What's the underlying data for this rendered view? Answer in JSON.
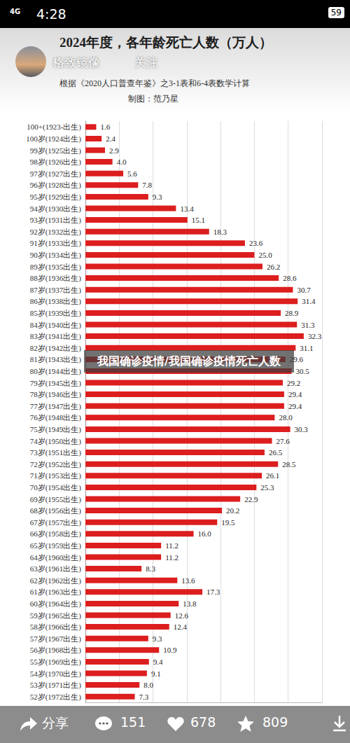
{
  "screen": {
    "network": "4G",
    "status_time": "4:28",
    "battery": "59",
    "account": "格致镜像",
    "follow": "关注",
    "caption": "我国确诊疫情/我国确诊疫情死亡人数",
    "share": "分享",
    "comments": 151,
    "likes": 678,
    "favorites": 809
  },
  "chart_data": {
    "type": "bar",
    "orientation": "horizontal",
    "title": "2024年度，各年龄死亡人数（万人）",
    "subtitle": "根据《2020人口普查年鉴》之3-1表和6-4表数学计算",
    "annotations": [
      "制图：范乃星"
    ],
    "categories": [
      "100+(1923-出生)",
      "100岁(1924出生)",
      "99岁(1925出生)",
      "98岁(1926出生)",
      "97岁(1927出生)",
      "96岁(1928出生)",
      "95岁(1929出生)",
      "94岁(1930出生)",
      "93岁(1931出生)",
      "92岁(1932出生)",
      "91岁(1933出生)",
      "90岁(1934出生)",
      "89岁(1935出生)",
      "88岁(1936出生)",
      "87岁(1937出生)",
      "86岁(1938出生)",
      "85岁(1939出生)",
      "84岁(1940出生)",
      "83岁(1941出生)",
      "82岁(1942出生)",
      "81岁(1943出生)",
      "80岁(1944出生)",
      "79岁(1945出生)",
      "78岁(1946出生)",
      "77岁(1947出生)",
      "76岁(1948出生)",
      "75岁(1949出生)",
      "74岁(1950出生)",
      "73岁(1951出生)",
      "72岁(1952出生)",
      "71岁(1953出生)",
      "70岁(1954出生)",
      "69岁(1955出生)",
      "68岁(1956出生)",
      "67岁(1957出生)",
      "66岁(1958出生)",
      "65岁(1959出生)",
      "64岁(1960出生)",
      "63岁(1961出生)",
      "62岁(1962出生)",
      "61岁(1963出生)",
      "60岁(1964出生)",
      "59岁(1965出生)",
      "58岁(1966出生)",
      "57岁(1967出生)",
      "56岁(1968出生)",
      "55岁(1969出生)",
      "54岁(1970出生)",
      "53岁(1971出生)",
      "52岁(1972出生)"
    ],
    "values": [
      1.6,
      2.4,
      2.9,
      4.0,
      5.6,
      7.8,
      9.3,
      13.4,
      15.1,
      18.3,
      23.6,
      25.0,
      26.2,
      28.6,
      30.7,
      31.4,
      28.9,
      31.3,
      32.3,
      31.1,
      29.6,
      30.5,
      29.2,
      29.4,
      29.4,
      28.0,
      30.3,
      27.6,
      26.5,
      28.5,
      26.1,
      25.3,
      22.9,
      20.2,
      19.5,
      16.0,
      11.2,
      11.2,
      8.3,
      13.6,
      17.3,
      13.8,
      12.6,
      12.4,
      9.3,
      10.9,
      9.4,
      9.1,
      8.0,
      7.3
    ],
    "value_labels": [
      "1.6",
      "2.4",
      "2.9",
      "4.0",
      "5.6",
      "7.8",
      "9.3",
      "13.4",
      "15.1",
      "18.3",
      "23.6",
      "25.0",
      "26.2",
      "28.6",
      "30.7",
      "31.4",
      "28.9",
      "31.3",
      "32.3",
      "31.1",
      "29.6",
      "30.5",
      "29.2",
      "29.4",
      "29.4",
      "28.0",
      "30.3",
      "27.6",
      "26.5",
      "28.5",
      "26.1",
      "25.3",
      "22.9",
      "20.2",
      "19.5",
      "16.0",
      "11.2",
      "11.2",
      "8.3",
      "13.6",
      "17.3",
      "13.8",
      "12.6",
      "12.4",
      "9.3",
      "10.9",
      "9.4",
      "9.1",
      "8.0",
      "7.3"
    ],
    "color": "#dc1e1e",
    "xlim": [
      0,
      35
    ],
    "xticks": [
      0,
      5,
      10,
      15,
      20,
      25,
      30,
      35
    ],
    "grid": true,
    "data_labels": true,
    "tick_labels": "y"
  }
}
